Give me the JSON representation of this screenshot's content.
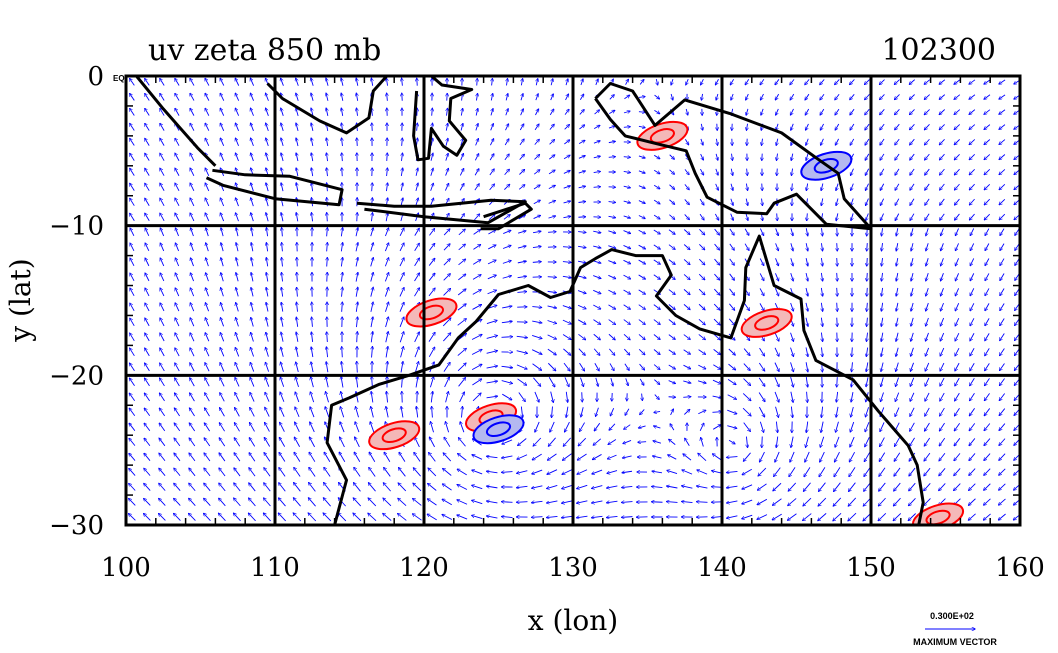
{
  "chart_data": {
    "type": "vector-field-map",
    "title": "uv zeta 850 mb",
    "date_code": "102300",
    "xlabel": "x (lon)",
    "ylabel": "y (lat)",
    "xlim": [
      100,
      160
    ],
    "ylim": [
      -30,
      0
    ],
    "xticks": [
      "100",
      "110",
      "120",
      "130",
      "140",
      "150",
      "160"
    ],
    "yticks": [
      "0",
      "−10",
      "−20",
      "−30"
    ],
    "eq_label": "EQ",
    "grid": true,
    "vector_legend": {
      "value_text": "0.300E+02",
      "caption": "MAXIMUM VECTOR"
    },
    "colors": {
      "coastline": "#000000",
      "vectors": "#0000ff",
      "positive_vorticity": "#ff0000",
      "positive_fill": "#f4b8b8",
      "negative_vorticity": "#0000ff",
      "negative_fill": "#b4b8f0"
    },
    "vorticity_features": [
      {
        "sign": "positive",
        "lon": 124.5,
        "lat": -22.8
      },
      {
        "sign": "negative",
        "lon": 125.0,
        "lat": -23.6
      },
      {
        "sign": "positive",
        "lon": 118.0,
        "lat": -24.0
      },
      {
        "sign": "positive",
        "lon": 120.5,
        "lat": -15.8
      },
      {
        "sign": "positive",
        "lon": 143.0,
        "lat": -16.5
      },
      {
        "sign": "positive",
        "lon": 136.0,
        "lat": -4.0
      },
      {
        "sign": "negative",
        "lon": 147.0,
        "lat": -6.0
      },
      {
        "sign": "positive",
        "lon": 154.5,
        "lat": -29.5
      }
    ]
  }
}
